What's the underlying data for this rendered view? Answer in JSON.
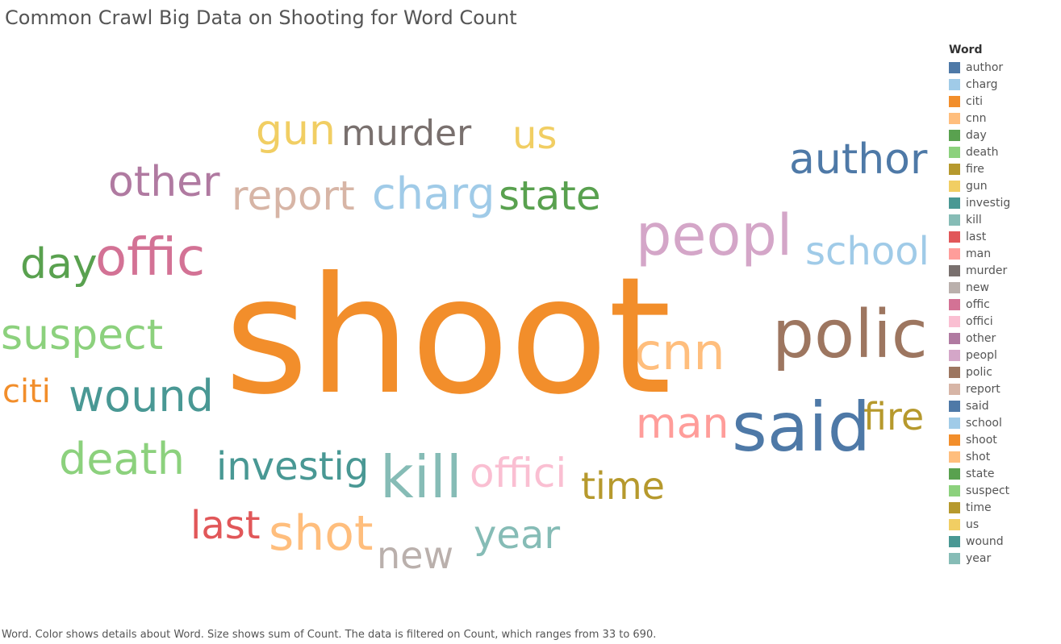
{
  "chart_data": {
    "type": "word-cloud",
    "title": "Common Crawl Big Data on Shooting for Word Count",
    "legend_title": "Word",
    "legend_position": "right",
    "words": [
      {
        "word": "author",
        "color": "#4e79a7"
      },
      {
        "word": "charg",
        "color": "#a0cbe8"
      },
      {
        "word": "citi",
        "color": "#f28e2b"
      },
      {
        "word": "cnn",
        "color": "#ffbe7d"
      },
      {
        "word": "day",
        "color": "#59a14f"
      },
      {
        "word": "death",
        "color": "#8cd17d"
      },
      {
        "word": "fire",
        "color": "#b6992d"
      },
      {
        "word": "gun",
        "color": "#f1ce63"
      },
      {
        "word": "investig",
        "color": "#499894"
      },
      {
        "word": "kill",
        "color": "#86bcb6"
      },
      {
        "word": "last",
        "color": "#e15759"
      },
      {
        "word": "man",
        "color": "#ff9d9a"
      },
      {
        "word": "murder",
        "color": "#79706e"
      },
      {
        "word": "new",
        "color": "#bab0ac"
      },
      {
        "word": "offic",
        "color": "#d37295"
      },
      {
        "word": "offici",
        "color": "#fabfd2"
      },
      {
        "word": "other",
        "color": "#b07aa1"
      },
      {
        "word": "peopl",
        "color": "#d4a6c8"
      },
      {
        "word": "polic",
        "color": "#9d7660"
      },
      {
        "word": "report",
        "color": "#d7b5a6"
      },
      {
        "word": "said",
        "color": "#4e79a7"
      },
      {
        "word": "school",
        "color": "#a0cbe8"
      },
      {
        "word": "shoot",
        "color": "#f28e2b"
      },
      {
        "word": "shot",
        "color": "#ffbe7d"
      },
      {
        "word": "state",
        "color": "#59a14f"
      },
      {
        "word": "suspect",
        "color": "#8cd17d"
      },
      {
        "word": "time",
        "color": "#b6992d"
      },
      {
        "word": "us",
        "color": "#f1ce63"
      },
      {
        "word": "wound",
        "color": "#499894"
      },
      {
        "word": "year",
        "color": "#86bcb6"
      }
    ],
    "footnote": "Word.  Color shows details about Word.  Size shows sum of Count. The data is filtered on Count, which ranges from 33 to 690."
  }
}
